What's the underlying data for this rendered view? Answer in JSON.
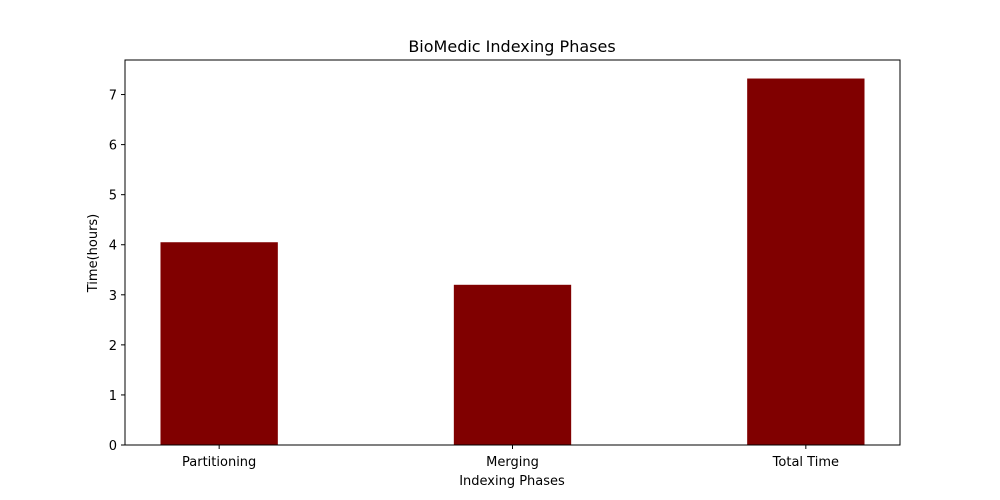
{
  "chart_data": {
    "type": "bar",
    "title": "BioMedic Indexing Phases",
    "xlabel": "Indexing Phases",
    "ylabel": "Time(hours)",
    "categories": [
      "Partitioning",
      "Merging",
      "Total Time"
    ],
    "values": [
      4.05,
      3.2,
      7.32
    ],
    "ylim": [
      0,
      7.69
    ],
    "yticks": [
      0,
      1,
      2,
      3,
      4,
      5,
      6,
      7
    ],
    "bar_color": "#800000",
    "grid": false,
    "legend": "none"
  }
}
